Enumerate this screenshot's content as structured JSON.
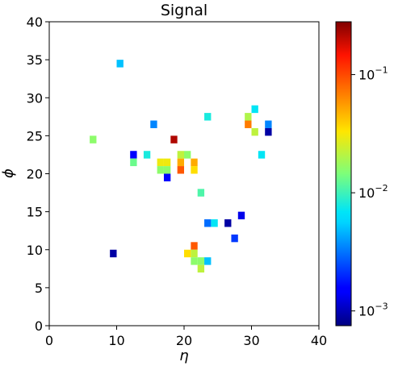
{
  "chart_data": {
    "type": "heatmap",
    "title": "Signal",
    "xlabel": "η",
    "ylabel": "ϕ",
    "xlim": [
      0,
      40
    ],
    "ylim": [
      0,
      40
    ],
    "x_ticks": [
      0,
      10,
      20,
      30,
      40
    ],
    "y_ticks": [
      0,
      5,
      10,
      15,
      20,
      25,
      30,
      35,
      40
    ],
    "grid": false,
    "colorbar": {
      "scale": "log",
      "colormap": "jet",
      "range": [
        0.00075,
        0.28
      ],
      "ticks": [
        {
          "value": 0.001,
          "base": "10",
          "exp": "−3"
        },
        {
          "value": 0.01,
          "base": "10",
          "exp": "−2"
        },
        {
          "value": 0.1,
          "base": "10",
          "exp": "−1"
        }
      ]
    },
    "cells": [
      {
        "x": 10,
        "y": 34,
        "value": 0.005
      },
      {
        "x": 6,
        "y": 24,
        "value": 0.016
      },
      {
        "x": 18,
        "y": 24,
        "value": 0.22
      },
      {
        "x": 15,
        "y": 26,
        "value": 0.0035
      },
      {
        "x": 23,
        "y": 27,
        "value": 0.008
      },
      {
        "x": 29,
        "y": 27,
        "value": 0.02
      },
      {
        "x": 30,
        "y": 28,
        "value": 0.007
      },
      {
        "x": 29,
        "y": 26,
        "value": 0.07
      },
      {
        "x": 32,
        "y": 26,
        "value": 0.0035
      },
      {
        "x": 30,
        "y": 25,
        "value": 0.022
      },
      {
        "x": 32,
        "y": 25,
        "value": 0.0009
      },
      {
        "x": 31,
        "y": 22,
        "value": 0.007
      },
      {
        "x": 12,
        "y": 22,
        "value": 0.0016
      },
      {
        "x": 14,
        "y": 22,
        "value": 0.008
      },
      {
        "x": 12,
        "y": 21,
        "value": 0.013
      },
      {
        "x": 19,
        "y": 22,
        "value": 0.022
      },
      {
        "x": 20,
        "y": 22,
        "value": 0.016
      },
      {
        "x": 16,
        "y": 21,
        "value": 0.03
      },
      {
        "x": 17,
        "y": 21,
        "value": 0.03
      },
      {
        "x": 19,
        "y": 21,
        "value": 0.05
      },
      {
        "x": 21,
        "y": 21,
        "value": 0.05
      },
      {
        "x": 16,
        "y": 20,
        "value": 0.016
      },
      {
        "x": 17,
        "y": 20,
        "value": 0.016
      },
      {
        "x": 19,
        "y": 20,
        "value": 0.09
      },
      {
        "x": 21,
        "y": 20,
        "value": 0.035
      },
      {
        "x": 17,
        "y": 19,
        "value": 0.0016
      },
      {
        "x": 22,
        "y": 17,
        "value": 0.011
      },
      {
        "x": 28,
        "y": 14,
        "value": 0.0013
      },
      {
        "x": 23,
        "y": 13,
        "value": 0.003
      },
      {
        "x": 24,
        "y": 13,
        "value": 0.007
      },
      {
        "x": 26,
        "y": 13,
        "value": 0.0009
      },
      {
        "x": 27,
        "y": 11,
        "value": 0.0022
      },
      {
        "x": 21,
        "y": 10,
        "value": 0.09
      },
      {
        "x": 9,
        "y": 9,
        "value": 0.0009
      },
      {
        "x": 20,
        "y": 9,
        "value": 0.035
      },
      {
        "x": 21,
        "y": 9,
        "value": 0.022
      },
      {
        "x": 21,
        "y": 8,
        "value": 0.016
      },
      {
        "x": 22,
        "y": 8,
        "value": 0.016
      },
      {
        "x": 23,
        "y": 8,
        "value": 0.005
      },
      {
        "x": 22,
        "y": 7,
        "value": 0.022
      }
    ]
  }
}
